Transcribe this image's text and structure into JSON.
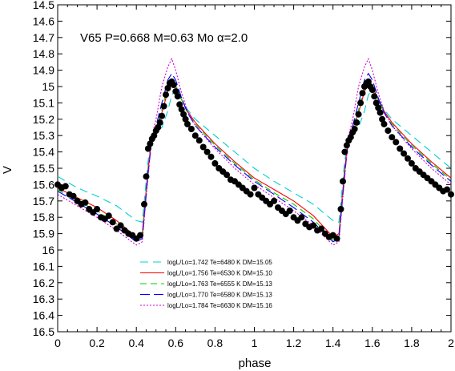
{
  "chart_data": {
    "type": "scatter",
    "title": "",
    "annotation": "V65 P=0.668 M=0.63 Mo  α=2.0",
    "xlabel": "phase",
    "ylabel": "V",
    "xlim": [
      0,
      2
    ],
    "ylim": [
      16.5,
      14.5
    ],
    "y_inverted": true,
    "grid": false,
    "legend_position": "bottom-center",
    "x_ticks": [
      0,
      0.2,
      0.4,
      0.6,
      0.8,
      1,
      1.2,
      1.4,
      1.6,
      1.8,
      2
    ],
    "x_tick_labels": [
      "0",
      "0.2",
      "0.4",
      "0.6",
      "0.8",
      "1",
      "1.2",
      "1.4",
      "1.6",
      "1.8",
      "2"
    ],
    "y_ticks": [
      14.5,
      14.6,
      14.7,
      14.8,
      14.9,
      15.0,
      15.1,
      15.2,
      15.3,
      15.4,
      15.5,
      15.6,
      15.7,
      15.8,
      15.9,
      16.0,
      16.1,
      16.2,
      16.3,
      16.4,
      16.5
    ],
    "y_tick_labels": [
      "14.5",
      "14.6",
      "14.7",
      "14.8",
      "14.9",
      "15",
      "15.1",
      "15.2",
      "15.3",
      "15.4",
      "15.5",
      "15.6",
      "15.7",
      "15.8",
      "15.9",
      "16",
      "16.1",
      "16.2",
      "16.3",
      "16.4",
      "16.5"
    ],
    "observations": {
      "marker": "filled-circle",
      "color": "#000000",
      "x": [
        0.0,
        0.02,
        0.04,
        0.06,
        0.08,
        0.1,
        0.12,
        0.14,
        0.16,
        0.18,
        0.2,
        0.22,
        0.24,
        0.26,
        0.28,
        0.3,
        0.32,
        0.34,
        0.36,
        0.38,
        0.4,
        0.42,
        0.44,
        0.45,
        0.46,
        0.47,
        0.48,
        0.49,
        0.5,
        0.51,
        0.52,
        0.53,
        0.54,
        0.55,
        0.56,
        0.57,
        0.58,
        0.59,
        0.6,
        0.61,
        0.62,
        0.63,
        0.64,
        0.65,
        0.66,
        0.68,
        0.7,
        0.72,
        0.74,
        0.76,
        0.78,
        0.8,
        0.82,
        0.84,
        0.86,
        0.88,
        0.9,
        0.92,
        0.94,
        0.96,
        0.98,
        1.0,
        1.02,
        1.04,
        1.06,
        1.08,
        1.1,
        1.12,
        1.14,
        1.16,
        1.18,
        1.2,
        1.22,
        1.24,
        1.26,
        1.28,
        1.3,
        1.32,
        1.34,
        1.36,
        1.38,
        1.4,
        1.42,
        1.44,
        1.45,
        1.46,
        1.47,
        1.48,
        1.49,
        1.5,
        1.51,
        1.52,
        1.53,
        1.54,
        1.55,
        1.56,
        1.57,
        1.58,
        1.59,
        1.6,
        1.61,
        1.62,
        1.63,
        1.64,
        1.65,
        1.66,
        1.68,
        1.7,
        1.72,
        1.74,
        1.76,
        1.78,
        1.8,
        1.82,
        1.84,
        1.86,
        1.88,
        1.9,
        1.92,
        1.94,
        1.96,
        1.98,
        2.0
      ],
      "y": [
        15.6,
        15.62,
        15.61,
        15.66,
        15.67,
        15.7,
        15.72,
        15.71,
        15.75,
        15.77,
        15.75,
        15.8,
        15.81,
        15.79,
        15.83,
        15.87,
        15.85,
        15.88,
        15.9,
        15.91,
        15.93,
        15.91,
        15.72,
        15.55,
        15.38,
        15.35,
        15.32,
        15.3,
        15.27,
        15.25,
        15.22,
        15.18,
        15.12,
        15.05,
        15.01,
        14.98,
        14.97,
        14.99,
        15.03,
        15.06,
        15.11,
        15.14,
        15.17,
        15.2,
        15.23,
        15.26,
        15.3,
        15.33,
        15.37,
        15.4,
        15.43,
        15.47,
        15.5,
        15.52,
        15.54,
        15.57,
        15.58,
        15.6,
        15.62,
        15.64,
        15.66,
        15.62,
        15.66,
        15.68,
        15.7,
        15.72,
        15.7,
        15.74,
        15.76,
        15.78,
        15.76,
        15.8,
        15.82,
        15.8,
        15.84,
        15.86,
        15.85,
        15.88,
        15.87,
        15.9,
        15.92,
        15.91,
        15.93,
        15.75,
        15.58,
        15.4,
        15.36,
        15.33,
        15.31,
        15.28,
        15.26,
        15.22,
        15.17,
        15.1,
        15.04,
        15.0,
        14.98,
        14.97,
        15.0,
        15.02,
        15.06,
        15.1,
        15.13,
        15.16,
        15.2,
        15.23,
        15.27,
        15.31,
        15.34,
        15.38,
        15.41,
        15.44,
        15.47,
        15.5,
        15.52,
        15.54,
        15.56,
        15.58,
        15.6,
        15.62,
        15.64,
        15.63,
        15.66
      ]
    },
    "series": [
      {
        "name": "logL/Lo=1.742 Te=6480 K DM=15.05",
        "color": "#00d0d0",
        "dash": "10,6",
        "x": [
          0.0,
          0.1,
          0.2,
          0.3,
          0.4,
          0.43,
          0.46,
          0.48,
          0.5,
          0.53,
          0.56,
          0.58,
          0.6,
          0.63,
          0.66,
          0.7,
          0.8,
          0.9,
          1.0,
          1.1,
          1.2,
          1.3,
          1.4,
          1.43,
          1.46,
          1.48,
          1.5,
          1.53,
          1.56,
          1.58,
          1.6,
          1.63,
          1.66,
          1.7,
          1.8,
          1.9,
          2.0
        ],
        "y": [
          15.55,
          15.62,
          15.67,
          15.73,
          15.82,
          15.83,
          15.45,
          15.32,
          15.28,
          15.25,
          15.15,
          15.05,
          15.02,
          15.08,
          15.14,
          15.2,
          15.3,
          15.4,
          15.5,
          15.58,
          15.65,
          15.72,
          15.82,
          15.83,
          15.45,
          15.32,
          15.28,
          15.25,
          15.15,
          15.05,
          15.02,
          15.08,
          15.14,
          15.2,
          15.3,
          15.4,
          15.5
        ]
      },
      {
        "name": "logL/Lo=1.756 Te=6530 K DM=15.10",
        "color": "#ff0000",
        "dash": "",
        "x": [
          0.0,
          0.1,
          0.2,
          0.3,
          0.4,
          0.43,
          0.46,
          0.48,
          0.5,
          0.53,
          0.56,
          0.58,
          0.6,
          0.63,
          0.66,
          0.7,
          0.8,
          0.9,
          1.0,
          1.1,
          1.2,
          1.3,
          1.4,
          1.43,
          1.46,
          1.48,
          1.5,
          1.53,
          1.56,
          1.58,
          1.6,
          1.63,
          1.66,
          1.7,
          1.8,
          1.9,
          2.0
        ],
        "y": [
          15.62,
          15.68,
          15.74,
          15.82,
          15.92,
          15.9,
          15.5,
          15.3,
          15.26,
          15.16,
          15.03,
          14.98,
          15.0,
          15.08,
          15.15,
          15.22,
          15.35,
          15.46,
          15.56,
          15.63,
          15.7,
          15.79,
          15.92,
          15.9,
          15.5,
          15.3,
          15.26,
          15.16,
          15.03,
          14.98,
          15.0,
          15.08,
          15.15,
          15.22,
          15.35,
          15.46,
          15.56
        ]
      },
      {
        "name": "logL/Lo=1.763 Te=6555 K DM=15.13",
        "color": "#00cc00",
        "dash": "8,5",
        "x": [
          0.0,
          0.1,
          0.2,
          0.3,
          0.4,
          0.43,
          0.46,
          0.48,
          0.5,
          0.53,
          0.56,
          0.58,
          0.6,
          0.63,
          0.66,
          0.7,
          0.8,
          0.9,
          1.0,
          1.1,
          1.2,
          1.3,
          1.4,
          1.43,
          1.46,
          1.48,
          1.5,
          1.53,
          1.56,
          1.58,
          1.6,
          1.63,
          1.66,
          1.7,
          1.8,
          1.9,
          2.0
        ],
        "y": [
          15.63,
          15.7,
          15.76,
          15.84,
          15.94,
          15.92,
          15.52,
          15.31,
          15.26,
          15.14,
          15.0,
          14.96,
          14.99,
          15.08,
          15.16,
          15.23,
          15.36,
          15.47,
          15.57,
          15.65,
          15.72,
          15.81,
          15.94,
          15.92,
          15.52,
          15.31,
          15.26,
          15.14,
          15.0,
          14.96,
          14.99,
          15.08,
          15.16,
          15.23,
          15.36,
          15.47,
          15.57
        ]
      },
      {
        "name": "logL/Lo=1.770 Te=6580 K DM=15.13",
        "color": "#0000ff",
        "dash": "12,5",
        "x": [
          0.0,
          0.1,
          0.2,
          0.3,
          0.4,
          0.43,
          0.46,
          0.48,
          0.5,
          0.53,
          0.56,
          0.58,
          0.6,
          0.63,
          0.66,
          0.7,
          0.8,
          0.9,
          1.0,
          1.1,
          1.2,
          1.3,
          1.4,
          1.43,
          1.46,
          1.48,
          1.5,
          1.53,
          1.56,
          1.58,
          1.6,
          1.63,
          1.66,
          1.7,
          1.8,
          1.9,
          2.0
        ],
        "y": [
          15.64,
          15.71,
          15.78,
          15.86,
          15.95,
          15.93,
          15.53,
          15.31,
          15.24,
          15.1,
          14.96,
          14.92,
          14.96,
          15.07,
          15.16,
          15.24,
          15.37,
          15.48,
          15.58,
          15.66,
          15.74,
          15.83,
          15.95,
          15.93,
          15.53,
          15.31,
          15.24,
          15.1,
          14.96,
          14.92,
          14.96,
          15.07,
          15.16,
          15.24,
          15.37,
          15.48,
          15.58
        ]
      },
      {
        "name": "logL/Lo=1.784 Te=6630 K DM=15.16",
        "color": "#d000d0",
        "dash": "2,2",
        "x": [
          0.0,
          0.1,
          0.2,
          0.3,
          0.4,
          0.43,
          0.46,
          0.48,
          0.5,
          0.53,
          0.56,
          0.58,
          0.6,
          0.63,
          0.66,
          0.7,
          0.8,
          0.9,
          1.0,
          1.1,
          1.2,
          1.3,
          1.4,
          1.43,
          1.46,
          1.48,
          1.5,
          1.53,
          1.56,
          1.58,
          1.6,
          1.63,
          1.66,
          1.7,
          1.8,
          1.9,
          2.0
        ],
        "y": [
          15.66,
          15.73,
          15.8,
          15.88,
          15.97,
          15.95,
          15.55,
          15.3,
          15.2,
          15.0,
          14.88,
          14.83,
          14.9,
          15.04,
          15.15,
          15.24,
          15.38,
          15.5,
          15.6,
          15.68,
          15.76,
          15.85,
          15.97,
          15.95,
          15.55,
          15.3,
          15.2,
          15.0,
          14.88,
          14.83,
          14.9,
          15.04,
          15.15,
          15.24,
          15.38,
          15.5,
          15.6
        ]
      }
    ]
  }
}
